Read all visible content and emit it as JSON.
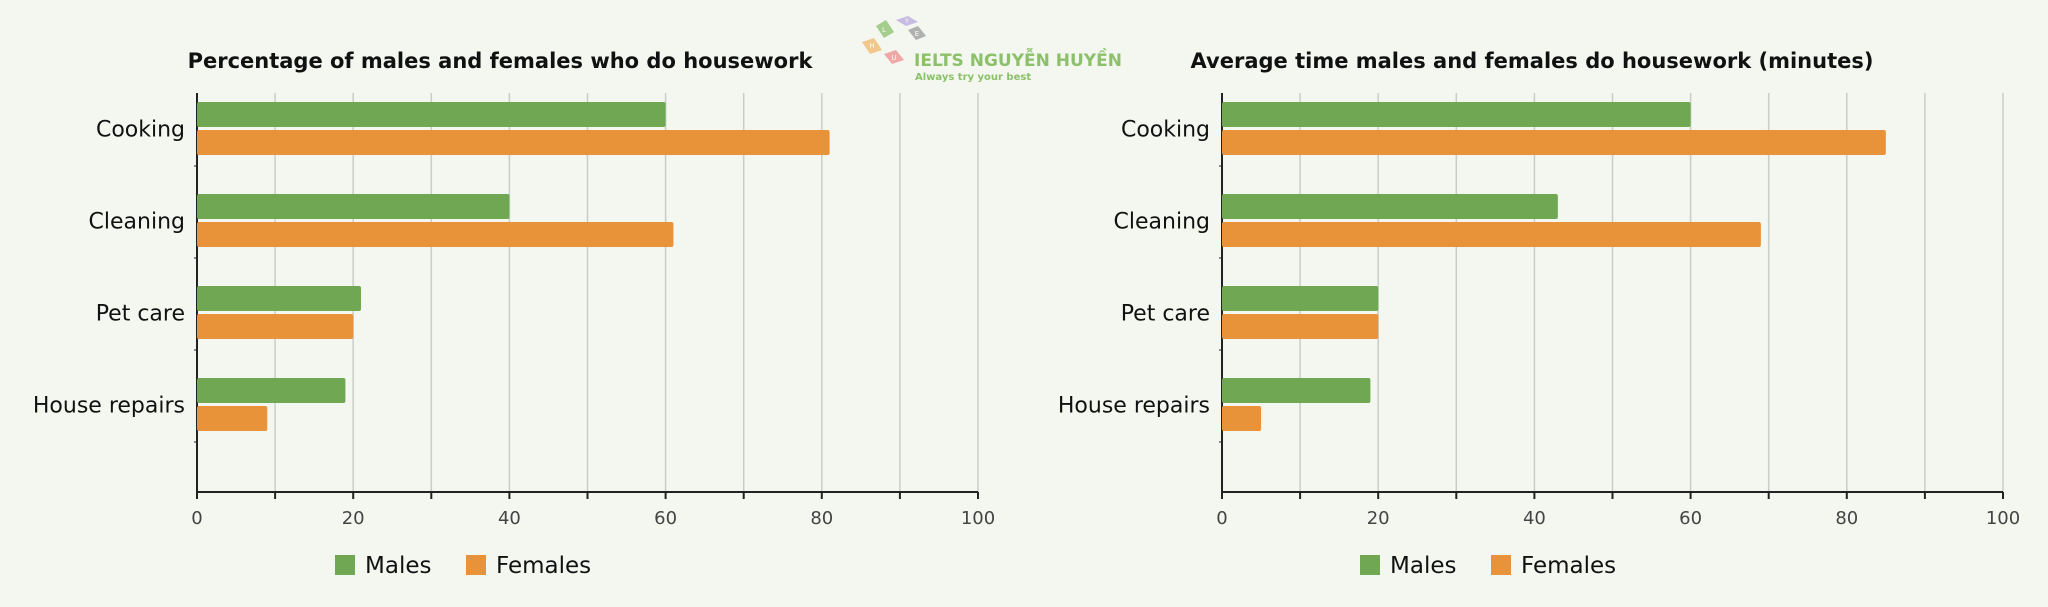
{
  "logo": {
    "brand": "IELTS NGUYỄN HUYỀN",
    "tagline": "Always try your best",
    "tile_letters": [
      "L",
      "Y",
      "E",
      "H",
      "U"
    ]
  },
  "colors": {
    "males": "#6fa752",
    "females": "#e8923a",
    "grid": "#c9cdc6",
    "axis": "#222222",
    "background": "#f3f7f0",
    "logo_green": "#8cc06a"
  },
  "chart_data": [
    {
      "type": "bar",
      "orientation": "horizontal",
      "title": "Percentage of males and females who do housework",
      "categories": [
        "Cooking",
        "Cleaning",
        "Pet care",
        "House repairs"
      ],
      "series": [
        {
          "name": "Males",
          "values": [
            60,
            40,
            21,
            19
          ]
        },
        {
          "name": "Females",
          "values": [
            81,
            61,
            20,
            9
          ]
        }
      ],
      "xlim": [
        0,
        100
      ],
      "xticks": [
        0,
        20,
        40,
        60,
        80,
        100
      ],
      "grid": true,
      "legend": "bottom"
    },
    {
      "type": "bar",
      "orientation": "horizontal",
      "title": "Average time males and females do housework (minutes)",
      "categories": [
        "Cooking",
        "Cleaning",
        "Pet care",
        "House repairs"
      ],
      "series": [
        {
          "name": "Males",
          "values": [
            60,
            43,
            20,
            19
          ]
        },
        {
          "name": "Females",
          "values": [
            85,
            69,
            20,
            5
          ]
        }
      ],
      "xlim": [
        0,
        100
      ],
      "xticks": [
        0,
        20,
        40,
        60,
        80,
        100
      ],
      "grid": true,
      "legend": "bottom"
    }
  ]
}
